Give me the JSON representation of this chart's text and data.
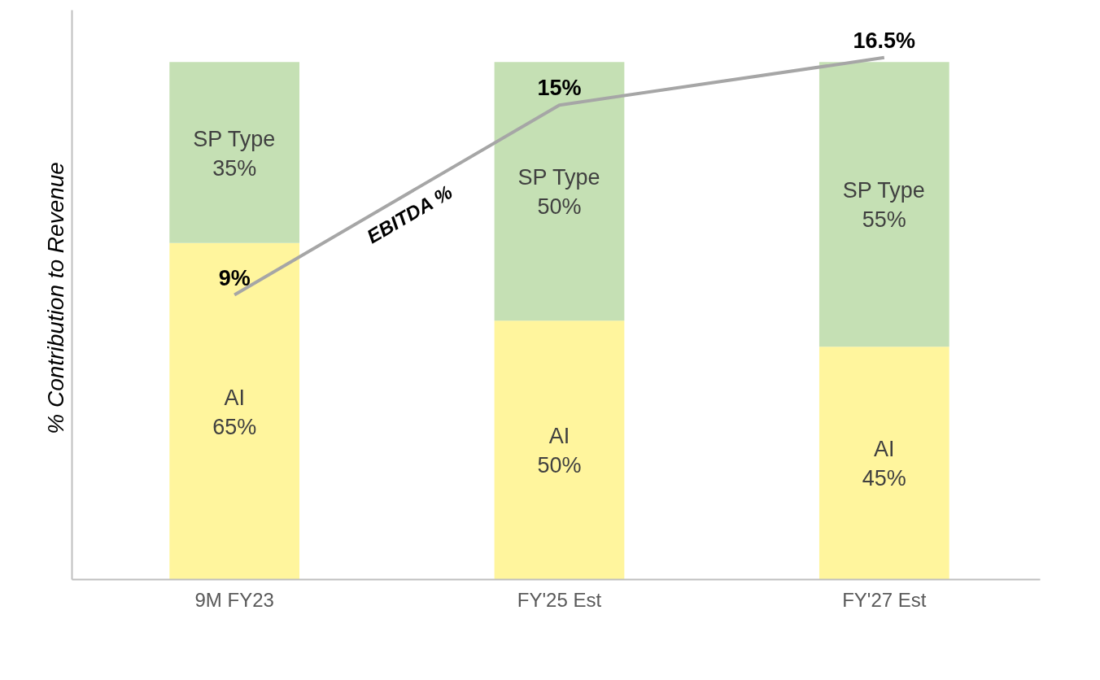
{
  "chart_data": {
    "type": "bar",
    "stacked": true,
    "ylabel": "% Contribution  to Revenue",
    "categories": [
      "9M FY23",
      "FY'25 Est",
      "FY'27 Est"
    ],
    "ylim": [
      0,
      110
    ],
    "y2lim": [
      0,
      18
    ],
    "tick_labels": "x",
    "grid": false,
    "series": [
      {
        "name": "AI",
        "color": "#fff59d",
        "values": [
          65,
          50,
          45
        ],
        "value_labels": [
          "65%",
          "50%",
          "45%"
        ]
      },
      {
        "name": "SP Type",
        "color": "#c5e0b4",
        "values": [
          35,
          50,
          55
        ],
        "value_labels": [
          "35%",
          "50%",
          "55%"
        ]
      },
      {
        "name": "EBITDA %",
        "type": "line",
        "axis": "y2",
        "color": "#a6a6a6",
        "values": [
          9,
          15,
          16.5
        ],
        "value_labels": [
          "9%",
          "15%",
          "16.5%"
        ]
      }
    ]
  }
}
